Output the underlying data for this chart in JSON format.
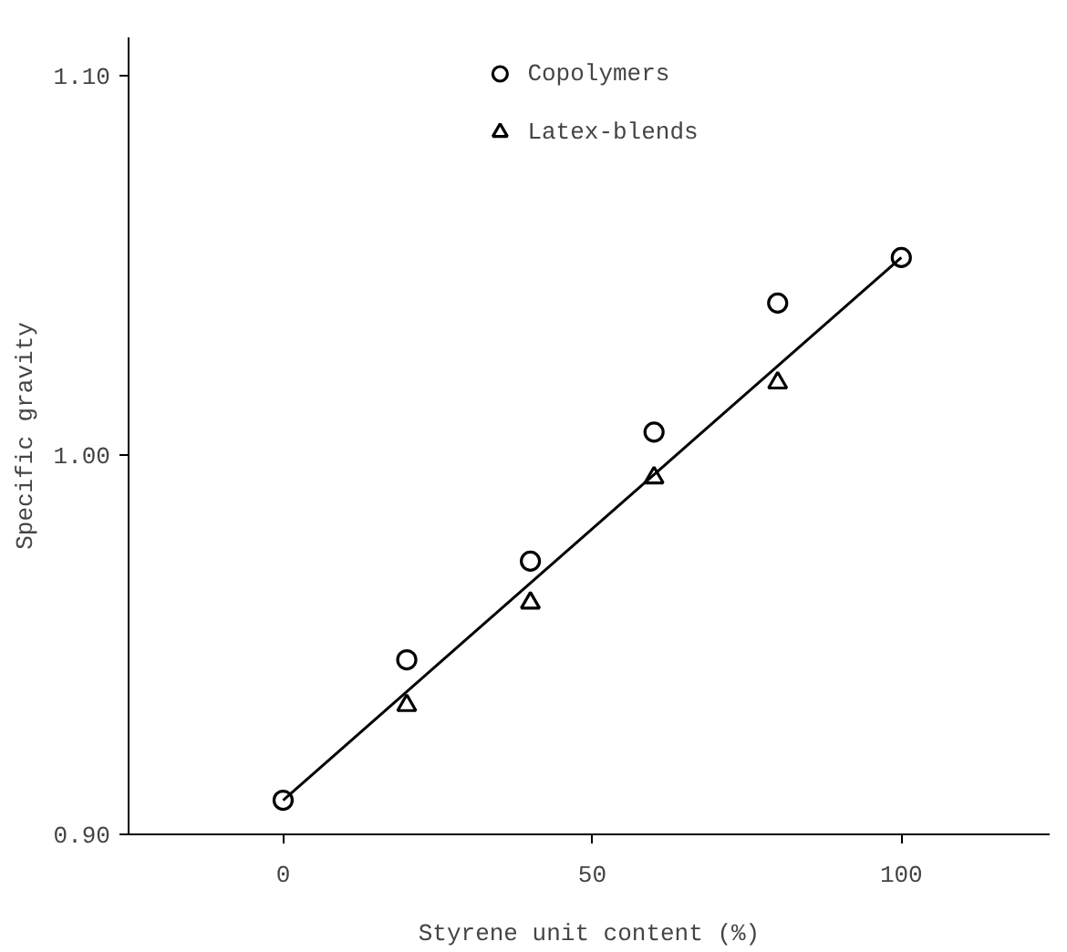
{
  "chart_data": {
    "type": "scatter",
    "xlabel": "Styrene unit content (%)",
    "ylabel": "Specific gravity",
    "xlim": [
      -25,
      124
    ],
    "ylim": [
      0.9,
      1.11
    ],
    "xticks": [
      0,
      50,
      100
    ],
    "yticks": [
      {
        "value": 0.9,
        "label": "0.90"
      },
      {
        "value": 1.0,
        "label": "1.00"
      },
      {
        "value": 1.1,
        "label": "1.10"
      }
    ],
    "grid": false,
    "legend": "top",
    "series": [
      {
        "name": "Copolymers",
        "color": "#000000",
        "marker": "circle",
        "x": [
          0,
          20,
          40,
          60,
          80,
          100
        ],
        "values": [
          0.909,
          0.946,
          0.972,
          1.006,
          1.04,
          1.052
        ]
      },
      {
        "name": "Latex-blends",
        "color": "#000000",
        "marker": "triangle",
        "x": [
          20,
          40,
          60,
          80
        ],
        "values": [
          0.934,
          0.961,
          0.994,
          1.019
        ]
      },
      {
        "type": "line",
        "color": "#000000",
        "marker": "none",
        "line_style": "solid",
        "x": [
          0,
          100
        ],
        "values": [
          0.909,
          1.052
        ]
      }
    ]
  }
}
